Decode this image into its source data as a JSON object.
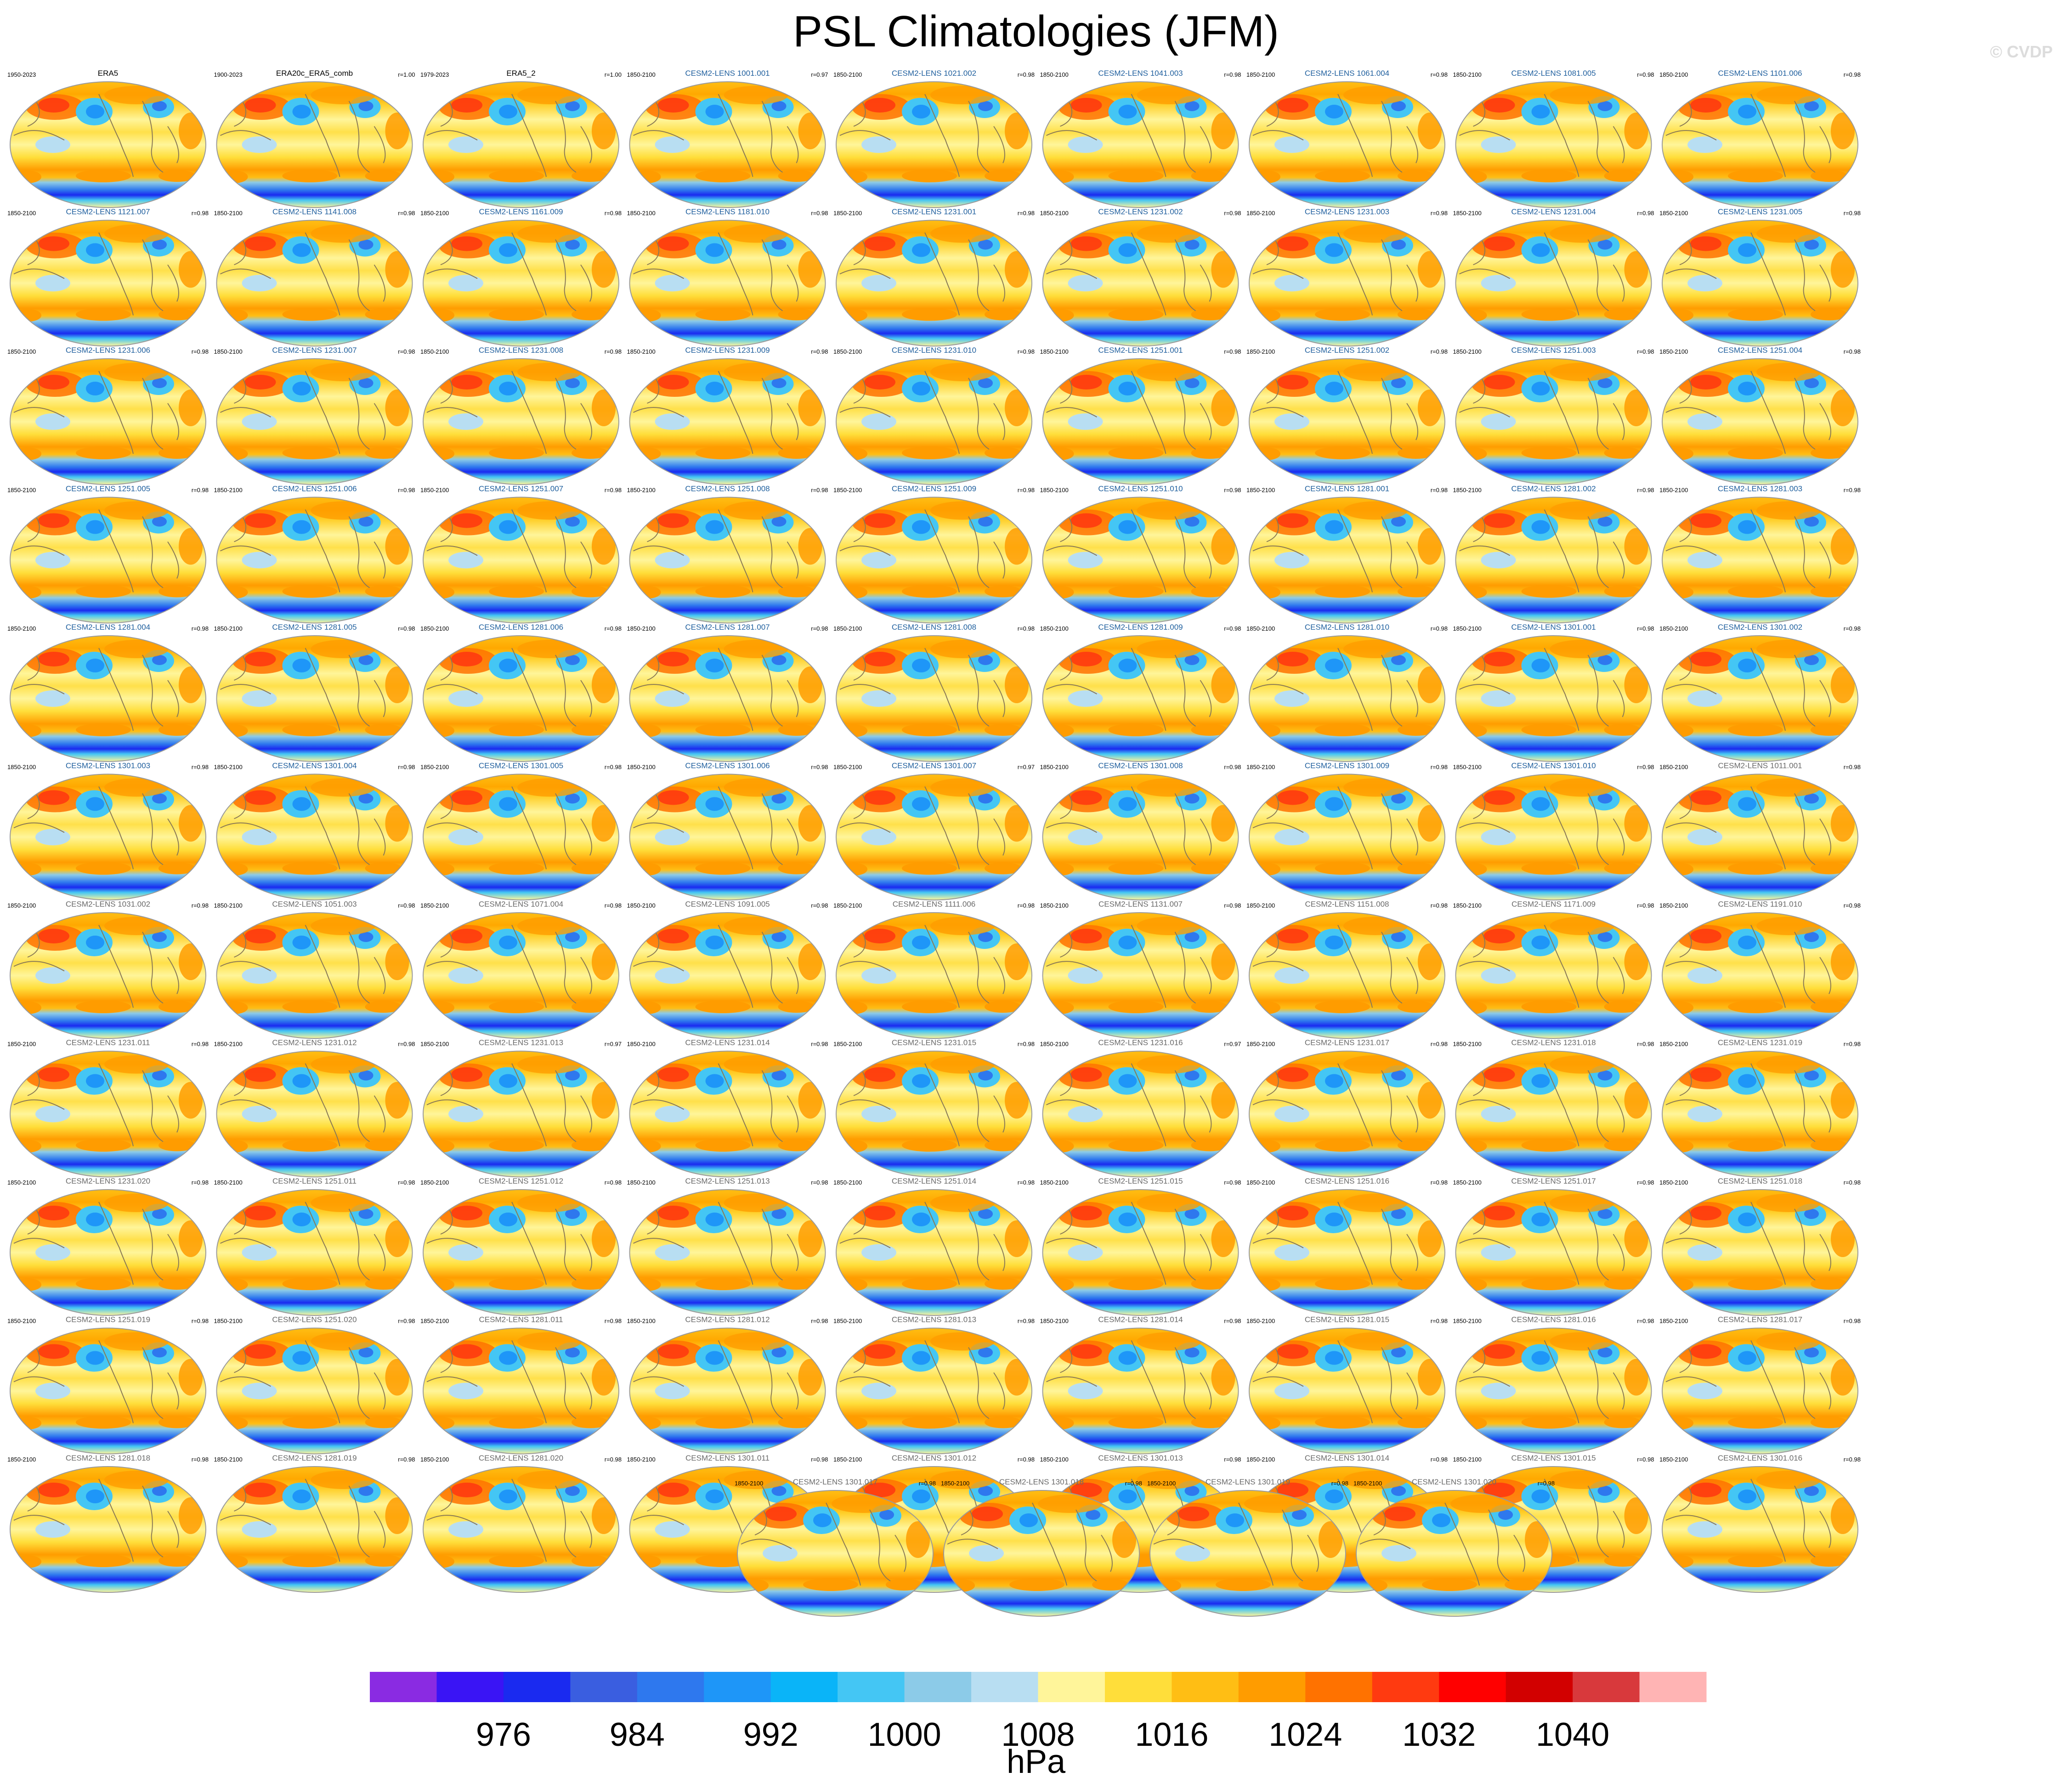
{
  "title": "PSL Climatologies (JFM)",
  "watermark": "© CVDP",
  "colors": {
    "obs_title": "#000000",
    "model_title_blue": "#1f5f9e",
    "model_title_gray": "#6a6a6a",
    "coast": "#8a7a55"
  },
  "chart_data": {
    "type": "heatmap",
    "variable": "PSL",
    "season": "JFM",
    "panels": [
      {
        "name": "ERA5",
        "years": "1950-2023",
        "r": "",
        "kind": "obs"
      },
      {
        "name": "ERA20c_ERA5_comb",
        "years": "1900-2023",
        "r": "r=1.00",
        "kind": "obs"
      },
      {
        "name": "ERA5_2",
        "years": "1979-2023",
        "r": "r=1.00",
        "kind": "obs"
      },
      {
        "name": "CESM2-LENS 1001.001",
        "years": "1850-2100",
        "r": "r=0.97",
        "kind": "blue"
      },
      {
        "name": "CESM2-LENS 1021.002",
        "years": "1850-2100",
        "r": "r=0.98",
        "kind": "blue"
      },
      {
        "name": "CESM2-LENS 1041.003",
        "years": "1850-2100",
        "r": "r=0.98",
        "kind": "blue"
      },
      {
        "name": "CESM2-LENS 1061.004",
        "years": "1850-2100",
        "r": "r=0.98",
        "kind": "blue"
      },
      {
        "name": "CESM2-LENS 1081.005",
        "years": "1850-2100",
        "r": "r=0.98",
        "kind": "blue"
      },
      {
        "name": "CESM2-LENS 1101.006",
        "years": "1850-2100",
        "r": "r=0.98",
        "kind": "blue"
      },
      {
        "name": "CESM2-LENS 1121.007",
        "years": "1850-2100",
        "r": "r=0.98",
        "kind": "blue"
      },
      {
        "name": "CESM2-LENS 1141.008",
        "years": "1850-2100",
        "r": "r=0.98",
        "kind": "blue"
      },
      {
        "name": "CESM2-LENS 1161.009",
        "years": "1850-2100",
        "r": "r=0.98",
        "kind": "blue"
      },
      {
        "name": "CESM2-LENS 1181.010",
        "years": "1850-2100",
        "r": "r=0.98",
        "kind": "blue"
      },
      {
        "name": "CESM2-LENS 1231.001",
        "years": "1850-2100",
        "r": "r=0.98",
        "kind": "blue"
      },
      {
        "name": "CESM2-LENS 1231.002",
        "years": "1850-2100",
        "r": "r=0.98",
        "kind": "blue"
      },
      {
        "name": "CESM2-LENS 1231.003",
        "years": "1850-2100",
        "r": "r=0.98",
        "kind": "blue"
      },
      {
        "name": "CESM2-LENS 1231.004",
        "years": "1850-2100",
        "r": "r=0.98",
        "kind": "blue"
      },
      {
        "name": "CESM2-LENS 1231.005",
        "years": "1850-2100",
        "r": "r=0.98",
        "kind": "blue"
      },
      {
        "name": "CESM2-LENS 1231.006",
        "years": "1850-2100",
        "r": "r=0.98",
        "kind": "blue"
      },
      {
        "name": "CESM2-LENS 1231.007",
        "years": "1850-2100",
        "r": "r=0.98",
        "kind": "blue"
      },
      {
        "name": "CESM2-LENS 1231.008",
        "years": "1850-2100",
        "r": "r=0.98",
        "kind": "blue"
      },
      {
        "name": "CESM2-LENS 1231.009",
        "years": "1850-2100",
        "r": "r=0.98",
        "kind": "blue"
      },
      {
        "name": "CESM2-LENS 1231.010",
        "years": "1850-2100",
        "r": "r=0.98",
        "kind": "blue"
      },
      {
        "name": "CESM2-LENS 1251.001",
        "years": "1850-2100",
        "r": "r=0.98",
        "kind": "blue"
      },
      {
        "name": "CESM2-LENS 1251.002",
        "years": "1850-2100",
        "r": "r=0.98",
        "kind": "blue"
      },
      {
        "name": "CESM2-LENS 1251.003",
        "years": "1850-2100",
        "r": "r=0.98",
        "kind": "blue"
      },
      {
        "name": "CESM2-LENS 1251.004",
        "years": "1850-2100",
        "r": "r=0.98",
        "kind": "blue"
      },
      {
        "name": "CESM2-LENS 1251.005",
        "years": "1850-2100",
        "r": "r=0.98",
        "kind": "blue"
      },
      {
        "name": "CESM2-LENS 1251.006",
        "years": "1850-2100",
        "r": "r=0.98",
        "kind": "blue"
      },
      {
        "name": "CESM2-LENS 1251.007",
        "years": "1850-2100",
        "r": "r=0.98",
        "kind": "blue"
      },
      {
        "name": "CESM2-LENS 1251.008",
        "years": "1850-2100",
        "r": "r=0.98",
        "kind": "blue"
      },
      {
        "name": "CESM2-LENS 1251.009",
        "years": "1850-2100",
        "r": "r=0.98",
        "kind": "blue"
      },
      {
        "name": "CESM2-LENS 1251.010",
        "years": "1850-2100",
        "r": "r=0.98",
        "kind": "blue"
      },
      {
        "name": "CESM2-LENS 1281.001",
        "years": "1850-2100",
        "r": "r=0.98",
        "kind": "blue"
      },
      {
        "name": "CESM2-LENS 1281.002",
        "years": "1850-2100",
        "r": "r=0.98",
        "kind": "blue"
      },
      {
        "name": "CESM2-LENS 1281.003",
        "years": "1850-2100",
        "r": "r=0.98",
        "kind": "blue"
      },
      {
        "name": "CESM2-LENS 1281.004",
        "years": "1850-2100",
        "r": "r=0.98",
        "kind": "blue"
      },
      {
        "name": "CESM2-LENS 1281.005",
        "years": "1850-2100",
        "r": "r=0.98",
        "kind": "blue"
      },
      {
        "name": "CESM2-LENS 1281.006",
        "years": "1850-2100",
        "r": "r=0.98",
        "kind": "blue"
      },
      {
        "name": "CESM2-LENS 1281.007",
        "years": "1850-2100",
        "r": "r=0.98",
        "kind": "blue"
      },
      {
        "name": "CESM2-LENS 1281.008",
        "years": "1850-2100",
        "r": "r=0.98",
        "kind": "blue"
      },
      {
        "name": "CESM2-LENS 1281.009",
        "years": "1850-2100",
        "r": "r=0.98",
        "kind": "blue"
      },
      {
        "name": "CESM2-LENS 1281.010",
        "years": "1850-2100",
        "r": "r=0.98",
        "kind": "blue"
      },
      {
        "name": "CESM2-LENS 1301.001",
        "years": "1850-2100",
        "r": "r=0.98",
        "kind": "blue"
      },
      {
        "name": "CESM2-LENS 1301.002",
        "years": "1850-2100",
        "r": "r=0.98",
        "kind": "blue"
      },
      {
        "name": "CESM2-LENS 1301.003",
        "years": "1850-2100",
        "r": "r=0.98",
        "kind": "blue"
      },
      {
        "name": "CESM2-LENS 1301.004",
        "years": "1850-2100",
        "r": "r=0.98",
        "kind": "blue"
      },
      {
        "name": "CESM2-LENS 1301.005",
        "years": "1850-2100",
        "r": "r=0.98",
        "kind": "blue"
      },
      {
        "name": "CESM2-LENS 1301.006",
        "years": "1850-2100",
        "r": "r=0.98",
        "kind": "blue"
      },
      {
        "name": "CESM2-LENS 1301.007",
        "years": "1850-2100",
        "r": "r=0.97",
        "kind": "blue"
      },
      {
        "name": "CESM2-LENS 1301.008",
        "years": "1850-2100",
        "r": "r=0.98",
        "kind": "blue"
      },
      {
        "name": "CESM2-LENS 1301.009",
        "years": "1850-2100",
        "r": "r=0.98",
        "kind": "blue"
      },
      {
        "name": "CESM2-LENS 1301.010",
        "years": "1850-2100",
        "r": "r=0.98",
        "kind": "blue"
      },
      {
        "name": "CESM2-LENS 1011.001",
        "years": "1850-2100",
        "r": "r=0.98",
        "kind": "gray"
      },
      {
        "name": "CESM2-LENS 1031.002",
        "years": "1850-2100",
        "r": "r=0.98",
        "kind": "gray"
      },
      {
        "name": "CESM2-LENS 1051.003",
        "years": "1850-2100",
        "r": "r=0.98",
        "kind": "gray"
      },
      {
        "name": "CESM2-LENS 1071.004",
        "years": "1850-2100",
        "r": "r=0.98",
        "kind": "gray"
      },
      {
        "name": "CESM2-LENS 1091.005",
        "years": "1850-2100",
        "r": "r=0.98",
        "kind": "gray"
      },
      {
        "name": "CESM2-LENS 1111.006",
        "years": "1850-2100",
        "r": "r=0.98",
        "kind": "gray"
      },
      {
        "name": "CESM2-LENS 1131.007",
        "years": "1850-2100",
        "r": "r=0.98",
        "kind": "gray"
      },
      {
        "name": "CESM2-LENS 1151.008",
        "years": "1850-2100",
        "r": "r=0.98",
        "kind": "gray"
      },
      {
        "name": "CESM2-LENS 1171.009",
        "years": "1850-2100",
        "r": "r=0.98",
        "kind": "gray"
      },
      {
        "name": "CESM2-LENS 1191.010",
        "years": "1850-2100",
        "r": "r=0.98",
        "kind": "gray"
      },
      {
        "name": "CESM2-LENS 1231.011",
        "years": "1850-2100",
        "r": "r=0.98",
        "kind": "gray"
      },
      {
        "name": "CESM2-LENS 1231.012",
        "years": "1850-2100",
        "r": "r=0.98",
        "kind": "gray"
      },
      {
        "name": "CESM2-LENS 1231.013",
        "years": "1850-2100",
        "r": "r=0.97",
        "kind": "gray"
      },
      {
        "name": "CESM2-LENS 1231.014",
        "years": "1850-2100",
        "r": "r=0.98",
        "kind": "gray"
      },
      {
        "name": "CESM2-LENS 1231.015",
        "years": "1850-2100",
        "r": "r=0.98",
        "kind": "gray"
      },
      {
        "name": "CESM2-LENS 1231.016",
        "years": "1850-2100",
        "r": "r=0.97",
        "kind": "gray"
      },
      {
        "name": "CESM2-LENS 1231.017",
        "years": "1850-2100",
        "r": "r=0.98",
        "kind": "gray"
      },
      {
        "name": "CESM2-LENS 1231.018",
        "years": "1850-2100",
        "r": "r=0.98",
        "kind": "gray"
      },
      {
        "name": "CESM2-LENS 1231.019",
        "years": "1850-2100",
        "r": "r=0.98",
        "kind": "gray"
      },
      {
        "name": "CESM2-LENS 1231.020",
        "years": "1850-2100",
        "r": "r=0.98",
        "kind": "gray"
      },
      {
        "name": "CESM2-LENS 1251.011",
        "years": "1850-2100",
        "r": "r=0.98",
        "kind": "gray"
      },
      {
        "name": "CESM2-LENS 1251.012",
        "years": "1850-2100",
        "r": "r=0.98",
        "kind": "gray"
      },
      {
        "name": "CESM2-LENS 1251.013",
        "years": "1850-2100",
        "r": "r=0.98",
        "kind": "gray"
      },
      {
        "name": "CESM2-LENS 1251.014",
        "years": "1850-2100",
        "r": "r=0.98",
        "kind": "gray"
      },
      {
        "name": "CESM2-LENS 1251.015",
        "years": "1850-2100",
        "r": "r=0.98",
        "kind": "gray"
      },
      {
        "name": "CESM2-LENS 1251.016",
        "years": "1850-2100",
        "r": "r=0.98",
        "kind": "gray"
      },
      {
        "name": "CESM2-LENS 1251.017",
        "years": "1850-2100",
        "r": "r=0.98",
        "kind": "gray"
      },
      {
        "name": "CESM2-LENS 1251.018",
        "years": "1850-2100",
        "r": "r=0.98",
        "kind": "gray"
      },
      {
        "name": "CESM2-LENS 1251.019",
        "years": "1850-2100",
        "r": "r=0.98",
        "kind": "gray"
      },
      {
        "name": "CESM2-LENS 1251.020",
        "years": "1850-2100",
        "r": "r=0.98",
        "kind": "gray"
      },
      {
        "name": "CESM2-LENS 1281.011",
        "years": "1850-2100",
        "r": "r=0.98",
        "kind": "gray"
      },
      {
        "name": "CESM2-LENS 1281.012",
        "years": "1850-2100",
        "r": "r=0.98",
        "kind": "gray"
      },
      {
        "name": "CESM2-LENS 1281.013",
        "years": "1850-2100",
        "r": "r=0.98",
        "kind": "gray"
      },
      {
        "name": "CESM2-LENS 1281.014",
        "years": "1850-2100",
        "r": "r=0.98",
        "kind": "gray"
      },
      {
        "name": "CESM2-LENS 1281.015",
        "years": "1850-2100",
        "r": "r=0.98",
        "kind": "gray"
      },
      {
        "name": "CESM2-LENS 1281.016",
        "years": "1850-2100",
        "r": "r=0.98",
        "kind": "gray"
      },
      {
        "name": "CESM2-LENS 1281.017",
        "years": "1850-2100",
        "r": "r=0.98",
        "kind": "gray"
      },
      {
        "name": "CESM2-LENS 1281.018",
        "years": "1850-2100",
        "r": "r=0.98",
        "kind": "gray"
      },
      {
        "name": "CESM2-LENS 1281.019",
        "years": "1850-2100",
        "r": "r=0.98",
        "kind": "gray"
      },
      {
        "name": "CESM2-LENS 1281.020",
        "years": "1850-2100",
        "r": "r=0.98",
        "kind": "gray"
      },
      {
        "name": "CESM2-LENS 1301.011",
        "years": "1850-2100",
        "r": "r=0.98",
        "kind": "gray"
      },
      {
        "name": "CESM2-LENS 1301.012",
        "years": "1850-2100",
        "r": "r=0.98",
        "kind": "gray"
      },
      {
        "name": "CESM2-LENS 1301.013",
        "years": "1850-2100",
        "r": "r=0.98",
        "kind": "gray"
      },
      {
        "name": "CESM2-LENS 1301.014",
        "years": "1850-2100",
        "r": "r=0.98",
        "kind": "gray"
      },
      {
        "name": "CESM2-LENS 1301.015",
        "years": "1850-2100",
        "r": "r=0.98",
        "kind": "gray"
      },
      {
        "name": "CESM2-LENS 1301.016",
        "years": "1850-2100",
        "r": "r=0.98",
        "kind": "gray"
      },
      {
        "name": "CESM2-LENS 1301.017",
        "years": "1850-2100",
        "r": "r=0.98",
        "kind": "gray"
      },
      {
        "name": "CESM2-LENS 1301.018",
        "years": "1850-2100",
        "r": "r=0.98",
        "kind": "gray"
      },
      {
        "name": "CESM2-LENS 1301.019",
        "years": "1850-2100",
        "r": "r=0.98",
        "kind": "gray"
      },
      {
        "name": "CESM2-LENS 1301.020",
        "years": "1850-2100",
        "r": "r=0.98",
        "kind": "gray"
      }
    ],
    "colorbar": {
      "unit_label": "hPa",
      "levels": [
        972,
        976,
        980,
        984,
        988,
        992,
        996,
        1000,
        1004,
        1008,
        1012,
        1016,
        1020,
        1024,
        1028,
        1032,
        1036,
        1040,
        1044
      ],
      "tick_labels": [
        976,
        984,
        992,
        1000,
        1008,
        1016,
        1024,
        1032,
        1040
      ],
      "colors": [
        "#8a2be2",
        "#3a14f5",
        "#1a2af0",
        "#3a5ee0",
        "#2e78ee",
        "#1e96f8",
        "#0ab4f8",
        "#44c6f4",
        "#8ccbe8",
        "#b8def2",
        "#fff59a",
        "#ffde3a",
        "#ffbe14",
        "#ff9c00",
        "#ff7200",
        "#ff3a10",
        "#ff0000",
        "#d20000",
        "#d8393c",
        "#ffb4b4"
      ]
    }
  }
}
